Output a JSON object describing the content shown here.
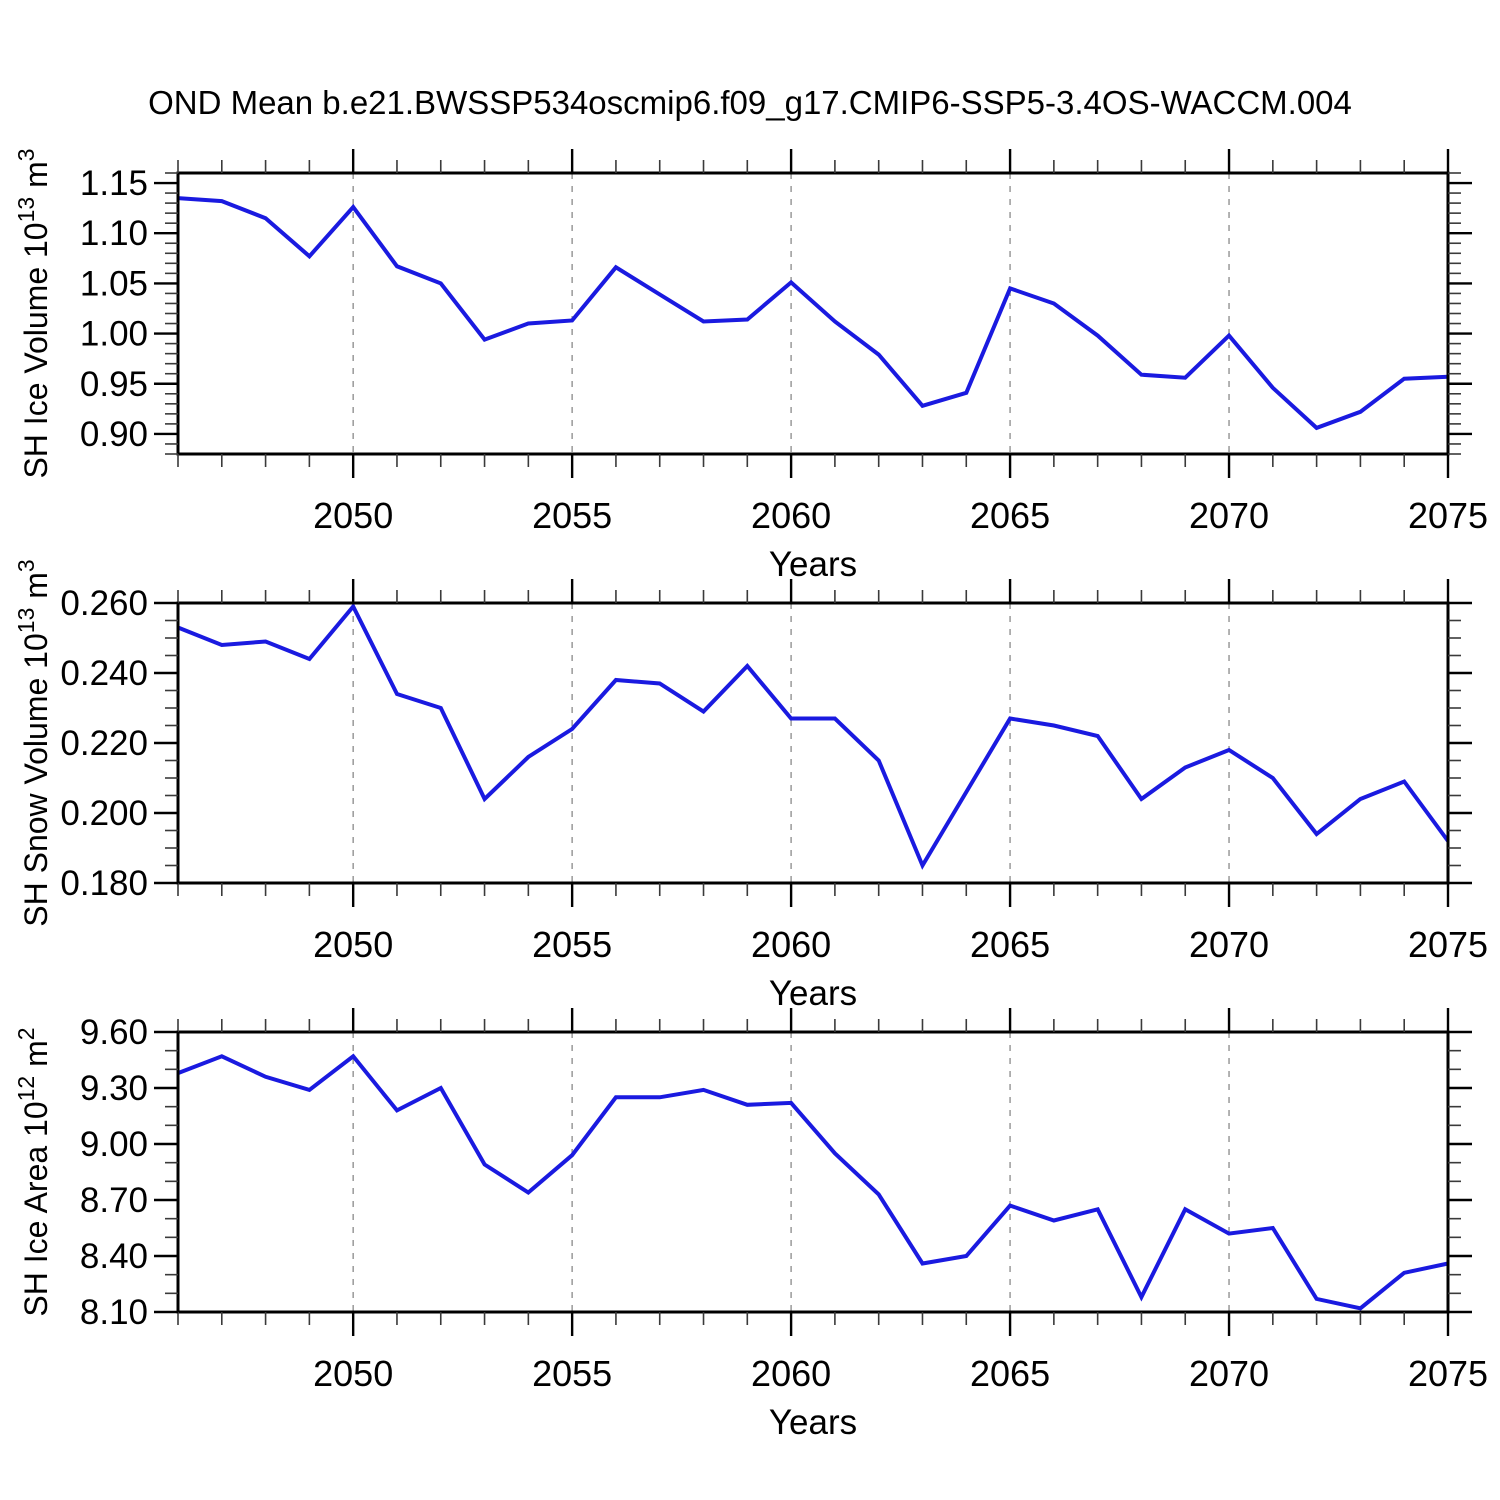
{
  "page": {
    "title": "OND Mean b.e21.BWSSP534oscmip6.f09_g17.CMIP6-SSP5-3.4OS-WACCM.004",
    "background": "#ffffff"
  },
  "colors": {
    "line": "#1a1ae0",
    "axis": "#000000",
    "grid": "#999999",
    "minor_tick": "#3a3a3a"
  },
  "x_axis": {
    "label": "Years",
    "min": 2046,
    "max": 2075,
    "tick_labels": [
      "2050",
      "2055",
      "2060",
      "2065",
      "2070",
      "2075"
    ],
    "tick_values": [
      2050,
      2055,
      2060,
      2065,
      2070,
      2075
    ],
    "minor_step": 1,
    "gridline_years": [
      2050,
      2055,
      2060,
      2065,
      2070
    ]
  },
  "chart_data": [
    {
      "type": "line",
      "series_name": "SH Ice Volume",
      "ylabel_text": "SH Ice Volume 10^13 m^3",
      "ylabel_parts": [
        {
          "text": "SH Ice Volume 10"
        },
        {
          "sup": "13"
        },
        {
          "text": " m"
        },
        {
          "sup": "3"
        }
      ],
      "xlabel": "Years",
      "x": [
        2046,
        2047,
        2048,
        2049,
        2050,
        2051,
        2052,
        2053,
        2054,
        2055,
        2056,
        2057,
        2058,
        2059,
        2060,
        2061,
        2062,
        2063,
        2064,
        2065,
        2066,
        2067,
        2068,
        2069,
        2070,
        2071,
        2072,
        2073,
        2074,
        2075
      ],
      "values": [
        1.135,
        1.132,
        1.115,
        1.077,
        1.126,
        1.067,
        1.05,
        0.994,
        1.01,
        1.013,
        1.066,
        1.039,
        1.012,
        1.014,
        1.051,
        1.012,
        0.979,
        0.928,
        0.941,
        1.045,
        1.03,
        0.998,
        0.959,
        0.956,
        0.998,
        0.946,
        0.906,
        0.922,
        0.955,
        0.957
      ],
      "ylim": [
        0.88,
        1.16
      ],
      "ytick_values": [
        0.9,
        0.95,
        1.0,
        1.05,
        1.1,
        1.15
      ],
      "ytick_labels": [
        "0.90",
        "0.95",
        "1.00",
        "1.05",
        "1.10",
        "1.15"
      ],
      "y_minor_step": 0.01,
      "grid": "vertical-dashed",
      "legend": "none"
    },
    {
      "type": "line",
      "series_name": "SH Snow Volume",
      "ylabel_text": "SH Snow Volume 10^13 m^3",
      "ylabel_parts": [
        {
          "text": "SH Snow Volume 10"
        },
        {
          "sup": "13"
        },
        {
          "text": " m"
        },
        {
          "sup": "3"
        }
      ],
      "xlabel": "Years",
      "x": [
        2046,
        2047,
        2048,
        2049,
        2050,
        2051,
        2052,
        2053,
        2054,
        2055,
        2056,
        2057,
        2058,
        2059,
        2060,
        2061,
        2062,
        2063,
        2064,
        2065,
        2066,
        2067,
        2068,
        2069,
        2070,
        2071,
        2072,
        2073,
        2074,
        2075
      ],
      "values": [
        0.253,
        0.248,
        0.249,
        0.244,
        0.259,
        0.234,
        0.23,
        0.204,
        0.216,
        0.224,
        0.238,
        0.237,
        0.229,
        0.242,
        0.227,
        0.227,
        0.215,
        0.185,
        0.206,
        0.227,
        0.225,
        0.222,
        0.204,
        0.213,
        0.218,
        0.21,
        0.194,
        0.204,
        0.209,
        0.192
      ],
      "ylim": [
        0.18,
        0.26
      ],
      "ytick_values": [
        0.18,
        0.2,
        0.22,
        0.24,
        0.26
      ],
      "ytick_labels": [
        "0.180",
        "0.200",
        "0.220",
        "0.240",
        "0.260"
      ],
      "y_minor_step": 0.005,
      "grid": "vertical-dashed",
      "legend": "none"
    },
    {
      "type": "line",
      "series_name": "SH Ice Area",
      "ylabel_text": "SH Ice Area 10^12 m^2",
      "ylabel_parts": [
        {
          "text": "SH Ice Area 10"
        },
        {
          "sup": "12"
        },
        {
          "text": " m"
        },
        {
          "sup": "2"
        }
      ],
      "xlabel": "Years",
      "x": [
        2046,
        2047,
        2048,
        2049,
        2050,
        2051,
        2052,
        2053,
        2054,
        2055,
        2056,
        2057,
        2058,
        2059,
        2060,
        2061,
        2062,
        2063,
        2064,
        2065,
        2066,
        2067,
        2068,
        2069,
        2070,
        2071,
        2072,
        2073,
        2074,
        2075
      ],
      "values": [
        9.38,
        9.47,
        9.36,
        9.29,
        9.47,
        9.18,
        9.3,
        8.89,
        8.74,
        8.94,
        9.25,
        9.25,
        9.29,
        9.21,
        9.22,
        8.95,
        8.73,
        8.36,
        8.4,
        8.67,
        8.59,
        8.65,
        8.18,
        8.65,
        8.52,
        8.55,
        8.17,
        8.12,
        8.31,
        8.36
      ],
      "ylim": [
        8.1,
        9.6
      ],
      "ytick_values": [
        8.1,
        8.4,
        8.7,
        9.0,
        9.3,
        9.6
      ],
      "ytick_labels": [
        "8.10",
        "8.40",
        "8.70",
        "9.00",
        "9.30",
        "9.60"
      ],
      "y_minor_step": 0.1,
      "grid": "vertical-dashed",
      "legend": "none"
    }
  ]
}
